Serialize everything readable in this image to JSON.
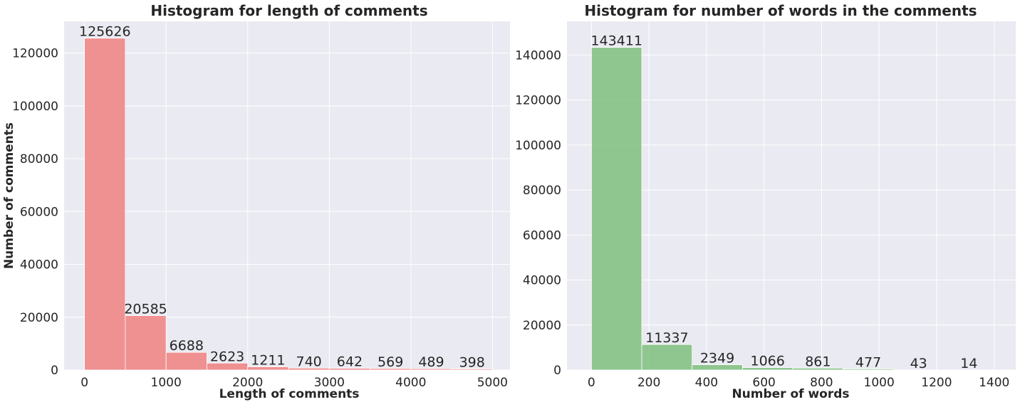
{
  "chart_data": [
    {
      "type": "bar",
      "title": "Histogram for length of comments",
      "xlabel": "Length of comments",
      "ylabel": "Number of comments",
      "bin_edges": [
        0,
        500,
        1000,
        1500,
        2000,
        2500,
        3000,
        3500,
        4000,
        4500,
        5000
      ],
      "values": [
        125626,
        20585,
        6688,
        2623,
        1211,
        740,
        642,
        569,
        489,
        398
      ],
      "xlim": [
        -250,
        5250
      ],
      "ylim": [
        0,
        132000
      ],
      "xticks": [
        0,
        1000,
        2000,
        3000,
        4000,
        5000
      ],
      "yticks": [
        0,
        20000,
        40000,
        60000,
        80000,
        100000,
        120000
      ],
      "color": "#f08080",
      "grid": true,
      "background": "#eaeaf2"
    },
    {
      "type": "bar",
      "title": "Histogram for number of words in the comments",
      "xlabel": "Number of words",
      "ylabel": "",
      "bin_edges": [
        0,
        175,
        350,
        525,
        700,
        875,
        1050,
        1225,
        1400
      ],
      "values": [
        143411,
        11337,
        2349,
        1066,
        861,
        477,
        43,
        14
      ],
      "xlim": [
        -85,
        1475
      ],
      "ylim": [
        0,
        155000
      ],
      "xticks": [
        0,
        200,
        400,
        600,
        800,
        1000,
        1200,
        1400
      ],
      "yticks": [
        0,
        20000,
        40000,
        60000,
        80000,
        100000,
        120000,
        140000
      ],
      "color": "#7fbf7f",
      "grid": true,
      "background": "#eaeaf2"
    }
  ]
}
